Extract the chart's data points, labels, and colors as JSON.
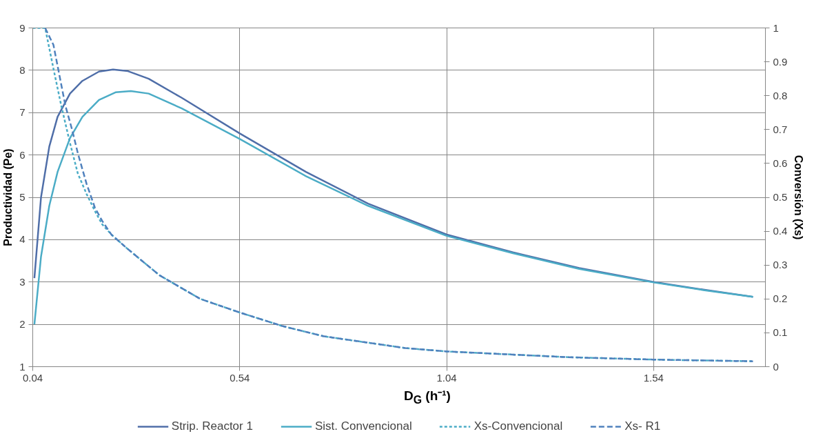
{
  "chart_data": {
    "type": "line",
    "xlabel": "D$_{G}$ (h⁻¹)",
    "ylabel": "Productividad (Pe)",
    "y2label": "Conversión (Xs)",
    "xlim": [
      0.04,
      1.81
    ],
    "xticks": [
      0.04,
      0.54,
      1.04,
      1.54
    ],
    "ylim": [
      1,
      9
    ],
    "yticks": [
      1,
      2,
      3,
      4,
      5,
      6,
      7,
      8,
      9
    ],
    "y2lim": [
      0,
      1
    ],
    "y2ticks": [
      0,
      0.1,
      0.2,
      0.3,
      0.4,
      0.5,
      0.6,
      0.7,
      0.8,
      0.9,
      1
    ],
    "grid": true,
    "legend": "bottom",
    "marker": "none",
    "series": [
      {
        "name": "Strip. Reactor 1",
        "color": "#4f6ea8",
        "line_style": "solid",
        "x": [
          0.044,
          0.06,
          0.08,
          0.1,
          0.13,
          0.16,
          0.2,
          0.234,
          0.27,
          0.32,
          0.4,
          0.54,
          0.7,
          0.85,
          1.04,
          1.2,
          1.36,
          1.54,
          1.66,
          1.78
        ],
        "values": [
          3.09,
          5.0,
          6.2,
          6.9,
          7.45,
          7.75,
          7.97,
          8.02,
          7.98,
          7.8,
          7.35,
          6.51,
          5.6,
          4.85,
          4.12,
          3.7,
          3.33,
          3.0,
          2.82,
          2.65
        ]
      },
      {
        "name": "Sist. Convencional",
        "color": "#4bacc6",
        "line_style": "solid",
        "x": [
          0.044,
          0.06,
          0.08,
          0.1,
          0.13,
          0.16,
          0.2,
          0.24,
          0.277,
          0.32,
          0.4,
          0.54,
          0.7,
          0.85,
          1.04,
          1.2,
          1.36,
          1.54,
          1.66,
          1.78
        ],
        "values": [
          2.0,
          3.6,
          4.8,
          5.6,
          6.4,
          6.9,
          7.3,
          7.48,
          7.51,
          7.45,
          7.1,
          6.38,
          5.5,
          4.8,
          4.09,
          3.68,
          3.31,
          2.99,
          2.81,
          2.65
        ]
      },
      {
        "name": "Xs-Convencional",
        "color": "#4bacc6",
        "line_style": "dotted",
        "axis": "y2",
        "x": [
          0.04,
          0.07,
          0.09,
          0.109,
          0.13,
          0.149,
          0.17,
          0.19,
          0.208,
          0.23,
          0.267,
          0.346,
          0.445,
          0.54,
          0.643,
          0.742,
          0.94,
          1.04,
          1.334,
          1.54,
          1.78
        ],
        "values": [
          1.0,
          1.0,
          0.88,
          0.77,
          0.66,
          0.57,
          0.51,
          0.46,
          0.42,
          0.39,
          0.35,
          0.27,
          0.2,
          0.16,
          0.12,
          0.09,
          0.055,
          0.045,
          0.028,
          0.021,
          0.016
        ]
      },
      {
        "name": "Xs- R1",
        "color": "#4f81bd",
        "line_style": "dashed",
        "axis": "y2",
        "x": [
          0.07,
          0.09,
          0.119,
          0.135,
          0.149,
          0.17,
          0.19,
          0.208,
          0.23,
          0.267,
          0.346,
          0.445,
          0.54,
          0.643,
          0.742,
          0.94,
          1.04,
          1.334,
          1.54,
          1.78
        ],
        "values": [
          1.0,
          0.95,
          0.77,
          0.7,
          0.63,
          0.54,
          0.47,
          0.43,
          0.39,
          0.35,
          0.27,
          0.2,
          0.16,
          0.12,
          0.09,
          0.055,
          0.045,
          0.028,
          0.021,
          0.016
        ]
      }
    ]
  }
}
